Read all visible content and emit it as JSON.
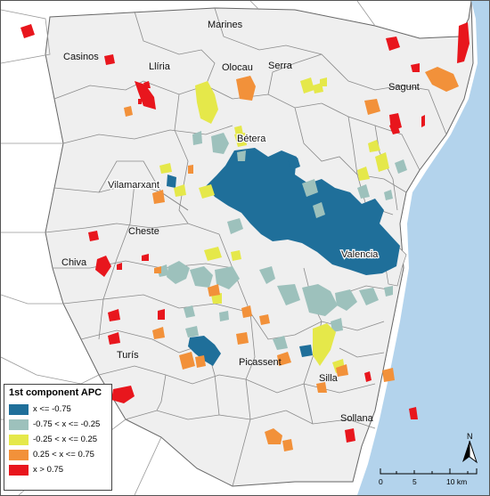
{
  "map": {
    "municipalities": [
      "Marines",
      "Casinos",
      "Llíria",
      "Olocau",
      "Serra",
      "Sagunt",
      "Bétera",
      "Vilamarxant",
      "Cheste",
      "Chiva",
      "Valencia",
      "Turís",
      "Picassent",
      "Silla",
      "Sollana"
    ],
    "colors": {
      "sea": "#b3d3ec",
      "land": "#efefef",
      "boundary": "#8a8a8a",
      "background": "#ffffff"
    }
  },
  "legend": {
    "title": "1st component APC",
    "classes": [
      {
        "label": "x <= -0.75",
        "color": "#1f6f9a"
      },
      {
        "label": "-0.75 < x <= -0.25",
        "color": "#9dc1bc"
      },
      {
        "label": "-0.25 < x <= 0.25",
        "color": "#e5e84a"
      },
      {
        "label": "0.25 < x <= 0.75",
        "color": "#f2913a"
      },
      {
        "label": "x > 0.75",
        "color": "#e8161d"
      }
    ]
  },
  "scale_bar": {
    "ticks": [
      "0",
      "5",
      "10 km"
    ]
  },
  "north_arrow": {
    "label": "N"
  }
}
